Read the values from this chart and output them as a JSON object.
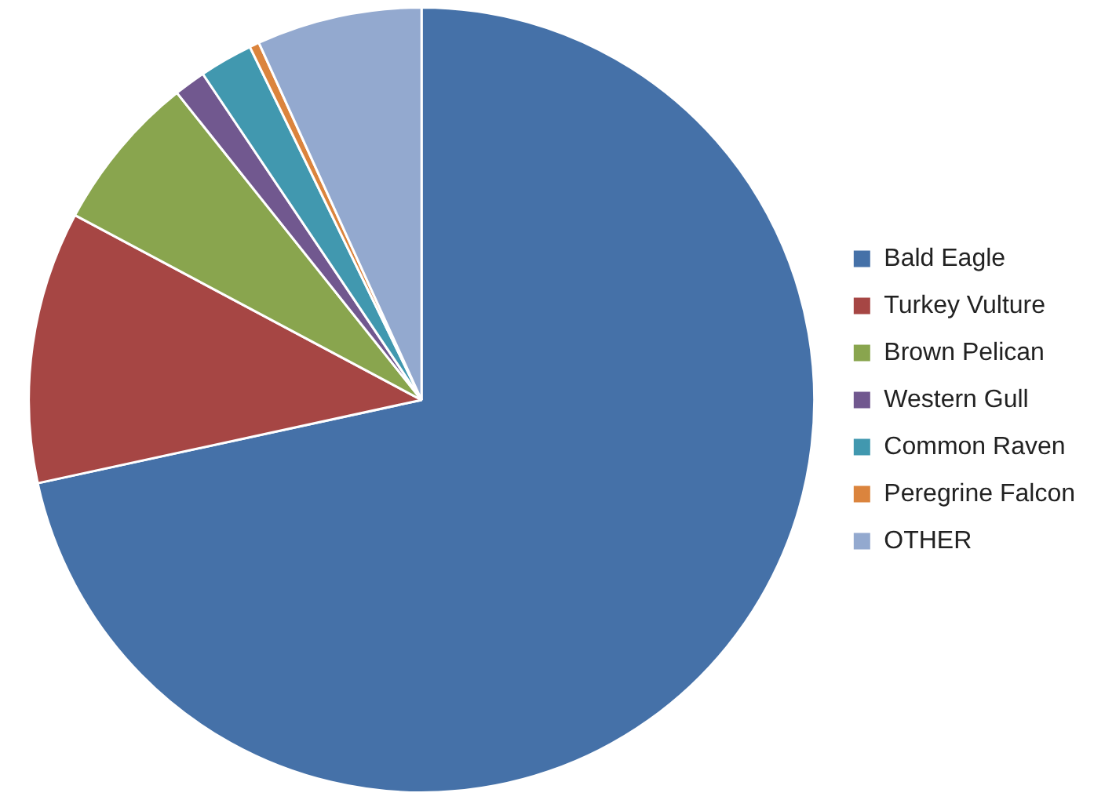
{
  "chart_data": {
    "type": "pie",
    "categories": [
      "Bald Eagle",
      "Turkey Vulture",
      "Brown Pelican",
      "Western Gull",
      "Common Raven",
      "Peregrine Falcon",
      "OTHER"
    ],
    "values": [
      71.6,
      11.2,
      6.5,
      1.3,
      2.2,
      0.4,
      6.8
    ],
    "colors": [
      "#4571a8",
      "#a64644",
      "#89a54e",
      "#71588f",
      "#4198af",
      "#db843d",
      "#93a9cf"
    ],
    "legend": "right"
  }
}
